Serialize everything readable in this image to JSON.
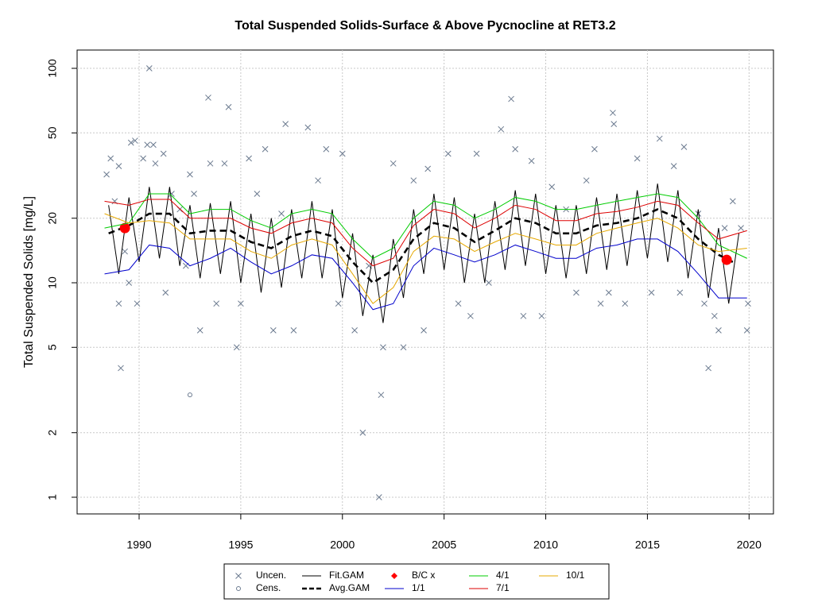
{
  "chart_data": {
    "type": "line",
    "title": "Total Suspended Solids-Surface & Above Pycnocline at RET3.2",
    "y_label": "Total Suspended Solids [mg/L]",
    "log_y": true,
    "grid": true,
    "xlim": [
      1986.95,
      2021.2
    ],
    "ylim": [
      0.836,
      121.7
    ],
    "xticks": [
      1990,
      1995,
      2000,
      2005,
      2010,
      2015,
      2020
    ],
    "yticks": [
      1,
      2,
      5,
      10,
      20,
      50,
      100
    ],
    "series": [
      {
        "name": "Uncen.",
        "mode": "cross",
        "color": "#6b7a8f",
        "x": [
          1988.4,
          1988.6,
          1988.8,
          1989,
          1989,
          1989.1,
          1989.3,
          1989.5,
          1989.6,
          1989.8,
          1989.9,
          1990.2,
          1990.4,
          1990.5,
          1990.7,
          1990.8,
          1991.2,
          1991.3,
          1991.6,
          1992,
          1992.3,
          1992.5,
          1992.7,
          1993,
          1993.4,
          1993.5,
          1993.8,
          1994.2,
          1994.4,
          1994.8,
          1995,
          1995.4,
          1995.8,
          1996.2,
          1996.6,
          1997,
          1997.2,
          1997.6,
          1998.3,
          1998.8,
          1999.2,
          1999.8,
          2000,
          2000.6,
          2001,
          2001.3,
          2001.8,
          2001.9,
          2002,
          2002.5,
          2003,
          2003.5,
          2004,
          2004.2,
          2005.2,
          2005.7,
          2006.3,
          2006.6,
          2007.2,
          2007.8,
          2008.3,
          2008.5,
          2008.9,
          2009.3,
          2009.8,
          2010.3,
          2011,
          2011.5,
          2012,
          2012.4,
          2012.7,
          2013.1,
          2013.3,
          2013.35,
          2013.9,
          2014.5,
          2015.2,
          2015.6,
          2016.3,
          2016.6,
          2016.8,
          2017.5,
          2017.8,
          2018,
          2018.3,
          2018.5,
          2018.8,
          2019.2,
          2019.6,
          2019.9,
          2019.95
        ],
        "values": [
          32,
          38,
          24,
          35,
          8,
          4,
          14,
          10,
          45,
          46,
          8,
          38,
          44,
          100,
          44,
          36,
          40,
          9,
          26,
          22,
          12,
          32,
          26,
          6,
          73,
          36,
          8,
          36,
          66,
          5,
          8,
          38,
          26,
          42,
          6,
          21,
          55,
          6,
          53,
          30,
          42,
          8,
          40,
          6,
          2,
          12,
          1,
          3,
          5,
          36,
          5,
          30,
          6,
          34,
          40,
          8,
          7,
          40,
          10,
          52,
          72,
          42,
          7,
          37,
          7,
          28,
          22,
          9,
          30,
          42,
          8,
          9,
          62,
          55,
          8,
          38,
          9,
          47,
          35,
          9,
          43,
          21,
          8,
          4,
          7,
          6,
          18,
          24,
          18,
          6,
          8
        ]
      },
      {
        "name": "Cens.",
        "mode": "circle",
        "color": "#6b7a8f",
        "x": [
          1992.5
        ],
        "values": [
          3
        ]
      },
      {
        "name": "Fit.GAM",
        "mode": "line",
        "color": "#000000",
        "x": [
          1988.5,
          1989,
          1989.5,
          1990,
          1990.5,
          1991,
          1991.5,
          1992,
          1992.5,
          1993,
          1993.5,
          1994,
          1994.5,
          1995,
          1995.5,
          1996,
          1996.5,
          1997,
          1997.5,
          1998,
          1998.5,
          1999,
          1999.5,
          2000,
          2000.5,
          2001,
          2001.5,
          2002,
          2002.5,
          2003,
          2003.5,
          2004,
          2004.5,
          2005,
          2005.5,
          2006,
          2006.5,
          2007,
          2007.5,
          2008,
          2008.5,
          2009,
          2009.5,
          2010,
          2010.5,
          2011,
          2011.5,
          2012,
          2012.5,
          2013,
          2013.5,
          2014,
          2014.5,
          2015,
          2015.5,
          2016,
          2016.5,
          2017,
          2017.5,
          2018,
          2018.5,
          2019,
          2019.5
        ],
        "values": [
          23,
          11,
          25,
          12.5,
          28,
          13,
          28,
          12,
          23,
          10.5,
          23.5,
          11,
          24,
          10,
          21,
          9,
          20,
          9.5,
          22,
          10.5,
          24,
          10.5,
          22,
          8.5,
          17,
          7,
          13.5,
          6.5,
          16,
          8.5,
          22,
          11,
          26,
          11.5,
          25,
          10,
          21,
          10,
          24,
          11.5,
          27,
          12,
          26,
          11,
          23,
          10.5,
          23,
          11,
          25,
          11.5,
          26,
          12,
          27,
          13,
          29,
          12.5,
          27,
          10.5,
          22,
          8.5,
          18,
          8,
          17
        ]
      },
      {
        "name": "Avg.GAM",
        "mode": "dashed",
        "color": "#000000",
        "x": [
          1988.5,
          1989.5,
          1990.5,
          1991.5,
          1992.5,
          1993.5,
          1994.5,
          1995.5,
          1996.5,
          1997.5,
          1998.5,
          1999.5,
          2000.5,
          2001.5,
          2002.5,
          2003.5,
          2004.5,
          2005.5,
          2006.5,
          2007.5,
          2008.5,
          2009.5,
          2010.5,
          2011.5,
          2012.5,
          2013.5,
          2014.5,
          2015.5,
          2016.5,
          2017.5,
          2018.5,
          2019.2
        ],
        "values": [
          17,
          18.5,
          21,
          21,
          17,
          17.5,
          17.5,
          15.5,
          14.5,
          16.5,
          17.5,
          16.5,
          12.5,
          10,
          11.5,
          16,
          19,
          18,
          15.5,
          17.5,
          20,
          19,
          17,
          17,
          18.5,
          19,
          20,
          22,
          20,
          16,
          13.5,
          12.5
        ]
      },
      {
        "name": "B/C x",
        "mode": "dot",
        "color": "#ff0000",
        "x": [
          1989.3,
          2018.9
        ],
        "values": [
          18,
          12.8
        ]
      },
      {
        "name": "1/1",
        "mode": "line",
        "color": "#0000cc",
        "x": [
          1988.3,
          1989.5,
          1990.5,
          1991.5,
          1992.5,
          1993.5,
          1994.5,
          1995.5,
          1996.5,
          1997.5,
          1998.5,
          1999.5,
          2000.5,
          2001.5,
          2002.5,
          2003.5,
          2004.5,
          2005.5,
          2006.5,
          2007.5,
          2008.5,
          2009.5,
          2010.5,
          2011.5,
          2012.5,
          2013.5,
          2014.5,
          2015.5,
          2016.5,
          2017.5,
          2018.5,
          2019.9
        ],
        "values": [
          11,
          11.5,
          15,
          14.5,
          12,
          13,
          14.5,
          12.5,
          11,
          12,
          13.5,
          13,
          10,
          7.5,
          8,
          12,
          14.5,
          13.5,
          12.5,
          13.5,
          15,
          14,
          13,
          13,
          14.5,
          15,
          16,
          16,
          14,
          11,
          8.5,
          8.5
        ]
      },
      {
        "name": "4/1",
        "mode": "line",
        "color": "#00cc00",
        "x": [
          1988.3,
          1989.5,
          1990.5,
          1991.5,
          1992.5,
          1993.5,
          1994.5,
          1995.5,
          1996.5,
          1997.5,
          1998.5,
          1999.5,
          2000.5,
          2001.5,
          2002.5,
          2003.5,
          2004.5,
          2005.5,
          2006.5,
          2007.5,
          2008.5,
          2009.5,
          2010.5,
          2011.5,
          2012.5,
          2013.5,
          2014.5,
          2015.5,
          2016.5,
          2017.5,
          2018.5,
          2019.9
        ],
        "values": [
          18,
          19,
          26,
          26,
          21,
          22,
          22,
          19.5,
          18,
          21,
          22,
          21,
          16,
          13,
          14.5,
          20,
          24,
          23,
          20,
          22,
          25,
          24,
          22,
          22,
          23,
          24,
          25,
          26,
          25,
          20,
          15,
          13
        ]
      },
      {
        "name": "7/1",
        "mode": "line",
        "color": "#dd0000",
        "x": [
          1988.3,
          1989.5,
          1990.5,
          1991.5,
          1992.5,
          1993.5,
          1994.5,
          1995.5,
          1996.5,
          1997.5,
          1998.5,
          1999.5,
          2000.5,
          2001.5,
          2002.5,
          2003.5,
          2004.5,
          2005.5,
          2006.5,
          2007.5,
          2008.5,
          2009.5,
          2010.5,
          2011.5,
          2012.5,
          2013.5,
          2014.5,
          2015.5,
          2016.5,
          2017.5,
          2018.5,
          2019.9
        ],
        "values": [
          24,
          23,
          24.5,
          24.5,
          20,
          20,
          20,
          18,
          17,
          19,
          20,
          19,
          14.5,
          12,
          13,
          18.5,
          22,
          21,
          18,
          20,
          23,
          22,
          19.5,
          19.5,
          21,
          21.5,
          22.5,
          24,
          23,
          19,
          16,
          17.5
        ]
      },
      {
        "name": "10/1",
        "mode": "line",
        "color": "#e6a800",
        "x": [
          1988.3,
          1989.5,
          1990.5,
          1991.5,
          1992.5,
          1993.5,
          1994.5,
          1995.5,
          1996.5,
          1997.5,
          1998.5,
          1999.5,
          2000.5,
          2001.5,
          2002.5,
          2003.5,
          2004.5,
          2005.5,
          2006.5,
          2007.5,
          2008.5,
          2009.5,
          2010.5,
          2011.5,
          2012.5,
          2013.5,
          2014.5,
          2015.5,
          2016.5,
          2017.5,
          2018.5,
          2019.9
        ],
        "values": [
          21,
          19,
          19.5,
          19,
          16,
          16,
          16,
          14,
          13,
          15,
          16,
          15,
          11,
          8,
          9.5,
          14,
          16.5,
          16,
          14,
          15.5,
          17,
          16,
          15,
          15,
          17,
          18,
          19,
          20,
          18,
          15,
          14,
          14.5
        ]
      }
    ]
  }
}
